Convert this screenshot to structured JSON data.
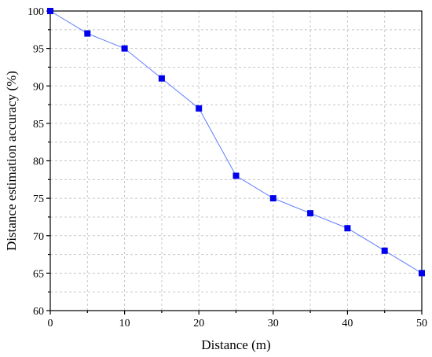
{
  "chart_data": {
    "type": "line",
    "title": "",
    "xlabel": "Distance (m)",
    "ylabel": "Distance estimation accuracy (%)",
    "xlim": [
      0,
      50
    ],
    "ylim": [
      60,
      100
    ],
    "xticks": [
      0,
      10,
      20,
      30,
      40,
      50
    ],
    "yticks": [
      60,
      65,
      70,
      75,
      80,
      85,
      90,
      95,
      100
    ],
    "grid": true,
    "legend": "none",
    "series": [
      {
        "x": [
          0,
          5,
          10,
          15,
          20,
          25,
          30,
          35,
          40,
          45,
          50
        ],
        "y": [
          100,
          97,
          95,
          91,
          87,
          78,
          75,
          73,
          71,
          68,
          65
        ],
        "color": "#0000ee",
        "line_color": "#5c7cff",
        "marker": "square"
      }
    ]
  }
}
